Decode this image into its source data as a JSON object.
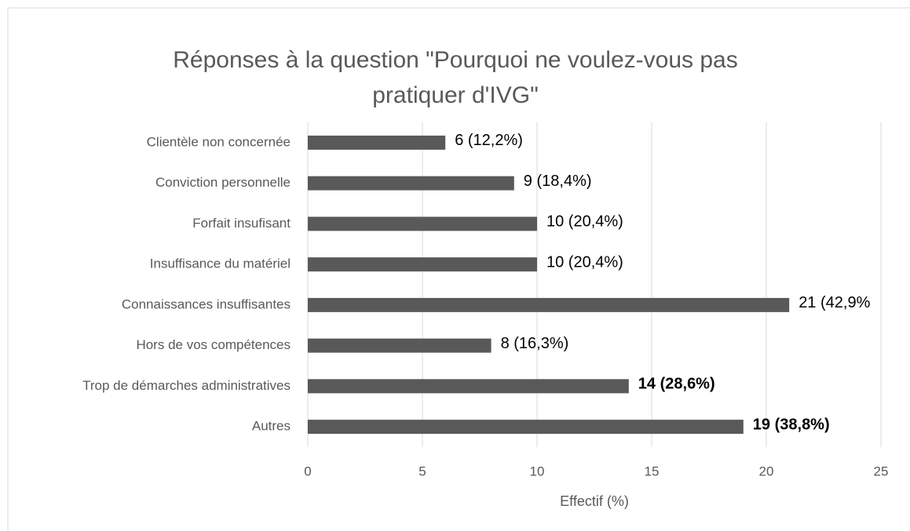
{
  "chart_data": {
    "type": "hbar",
    "title": [
      "Réponses à la question \"Pourquoi ne voulez-vous pas",
      "pratiquer d'IVG\""
    ],
    "categories": [
      "Clientèle non concernée",
      "Conviction personnelle",
      "Forfait insufisant",
      "Insuffisance du matériel",
      "Connaissances insuffisantes",
      "Hors de vos compétences",
      "Trop de démarches administratives",
      "Autres"
    ],
    "values": [
      6,
      9,
      10,
      10,
      21,
      8,
      14,
      19
    ],
    "value_labels": [
      "6 (12,2%)",
      "9 (18,4%)",
      "10 (20,4%)",
      "10 (20,4%)",
      "21 (42,9%",
      "8 (16,3%)",
      "14 (28,6%)",
      "19 (38,8%)"
    ],
    "value_label_bold": [
      false,
      false,
      false,
      false,
      false,
      false,
      true,
      true
    ],
    "color": "#595959",
    "xlabel": "Effectif (%)",
    "xlim": [
      0,
      25
    ],
    "xticks": [
      0,
      5,
      10,
      15,
      20,
      25
    ],
    "grid": true
  }
}
